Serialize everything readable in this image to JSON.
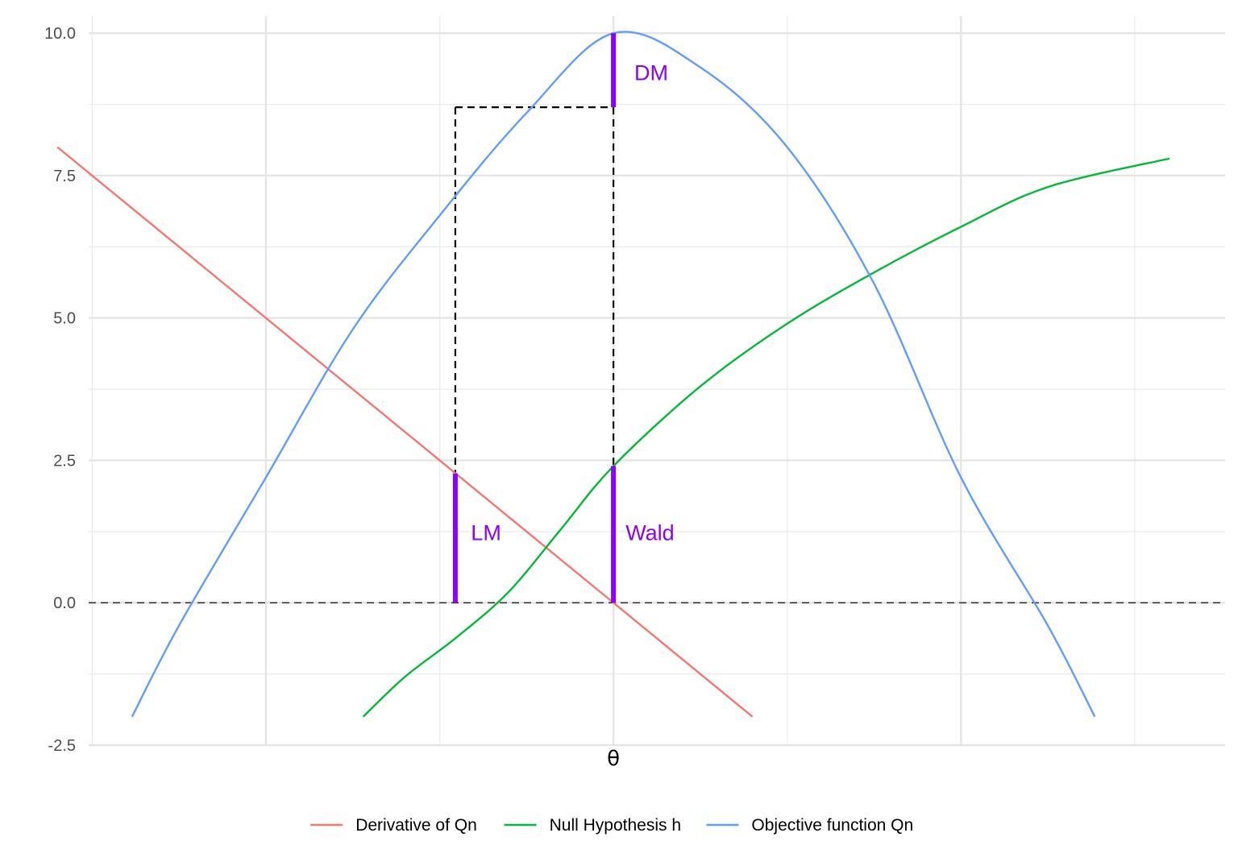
{
  "chart_data": {
    "type": "line",
    "title": "",
    "xlabel": "θ",
    "ylabel": "",
    "xlim": [
      -3.02,
      3.52
    ],
    "ylim": [
      -2.5,
      10.3
    ],
    "y_ticks": [
      -2.5,
      0,
      2.5,
      5,
      7.5,
      10
    ],
    "y_tick_labels": [
      "-2.5",
      "0.0",
      "2.5",
      "5.0",
      "7.5",
      "10.0"
    ],
    "x_grid_major": [
      -2,
      0,
      2
    ],
    "x_grid_minor": [
      -3,
      -1,
      1,
      3
    ],
    "grid": true,
    "legend_position": "bottom",
    "series": [
      {
        "name": "Derivative of Qn",
        "color": "#F8766D",
        "x": [
          -3.2,
          0,
          0.8
        ],
        "y": [
          8.0,
          0.0,
          -2.0
        ]
      },
      {
        "name": "Null Hypothesis h",
        "color": "#00BA38",
        "x": [
          -1.44,
          -1.2,
          -0.9,
          -0.6,
          -0.3,
          0,
          0.5,
          1.0,
          1.5,
          2.0,
          2.5,
          3.2
        ],
        "y": [
          -2.0,
          -1.3,
          -0.6,
          0.2,
          1.3,
          2.4,
          3.8,
          4.9,
          5.8,
          6.6,
          7.3,
          7.8
        ]
      },
      {
        "name": "Objective function Qn",
        "color": "#619CFF",
        "x": [
          -2.77,
          -2.5,
          -2.0,
          -1.5,
          -1.0,
          -0.5,
          0,
          0.5,
          1.0,
          1.5,
          2.0,
          2.5,
          2.77
        ],
        "y": [
          -2.0,
          -0.4,
          2.2,
          4.8,
          6.8,
          8.6,
          10.0,
          9.4,
          8.0,
          5.6,
          2.2,
          -0.4,
          -2.0
        ]
      }
    ],
    "reference_lines": {
      "hline_y": 0,
      "dashed_box": {
        "x0": -0.91,
        "x1": 0,
        "y_top": 8.7
      }
    },
    "segments": [
      {
        "label": "DM",
        "x": 0,
        "y0": 8.7,
        "y1": 10.0,
        "label_x": 0.12,
        "label_y": 9.3
      },
      {
        "label": "LM",
        "x": -0.91,
        "y0": 0,
        "y1": 2.27,
        "label_x": -0.82,
        "label_y": 1.23
      },
      {
        "label": "Wald",
        "x": 0,
        "y0": 0,
        "y1": 2.4,
        "label_x": 0.07,
        "label_y": 1.23
      }
    ],
    "segment_color": "#8B00FF",
    "legend_entries": [
      "Derivative of Qn",
      "Null Hypothesis h",
      "Objective function Qn"
    ]
  }
}
